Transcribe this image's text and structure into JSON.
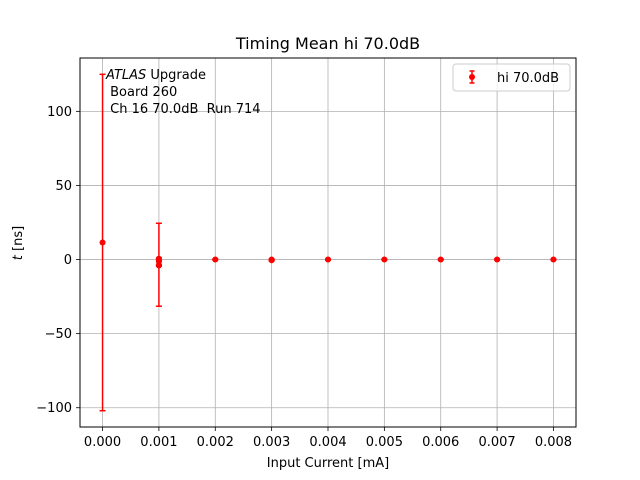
{
  "chart_data": {
    "type": "scatter",
    "title": "Timing Mean hi 70.0dB",
    "xlabel": "Input Current [mA]",
    "ylabel_italic": "t",
    "ylabel_rest": " [ns]",
    "xlim": [
      -0.0004,
      0.0084
    ],
    "ylim": [
      -113,
      136
    ],
    "xticks": [
      0.0,
      0.001,
      0.002,
      0.003,
      0.004,
      0.005,
      0.006,
      0.007,
      0.008
    ],
    "xtick_labels": [
      "0.000",
      "0.001",
      "0.002",
      "0.003",
      "0.004",
      "0.005",
      "0.006",
      "0.007",
      "0.008"
    ],
    "yticks": [
      -100,
      -50,
      0,
      50,
      100
    ],
    "ytick_labels": [
      "−100",
      "−50",
      "0",
      "50",
      "100"
    ],
    "grid": true,
    "legend_position": "top-right",
    "annotation": {
      "line1_italic": "ATLAS",
      "line1_rest": " Upgrade",
      "line2": " Board 260",
      "line3": " Ch 16 70.0dB  Run 714"
    },
    "series": [
      {
        "name": "hi 70.0dB",
        "color": "#ff0000",
        "points": [
          {
            "x": 0.0,
            "y": 11.5,
            "err": 113.5
          },
          {
            "x": 0.001,
            "y": 0.5,
            "err": 0.5
          },
          {
            "x": 0.001,
            "y": -1.0,
            "err": 0.5
          },
          {
            "x": 0.001,
            "y": -3.5,
            "err": 28.0
          },
          {
            "x": 0.001,
            "y": -4.0,
            "err": 0.5
          },
          {
            "x": 0.002,
            "y": 0.0,
            "err": 0.3
          },
          {
            "x": 0.003,
            "y": 0.0,
            "err": 0.3
          },
          {
            "x": 0.003,
            "y": -0.5,
            "err": 0.3
          },
          {
            "x": 0.004,
            "y": 0.0,
            "err": 0.3
          },
          {
            "x": 0.005,
            "y": 0.0,
            "err": 0.3
          },
          {
            "x": 0.006,
            "y": 0.0,
            "err": 0.3
          },
          {
            "x": 0.007,
            "y": 0.0,
            "err": 0.3
          },
          {
            "x": 0.008,
            "y": 0.0,
            "err": 0.3
          }
        ]
      }
    ]
  }
}
